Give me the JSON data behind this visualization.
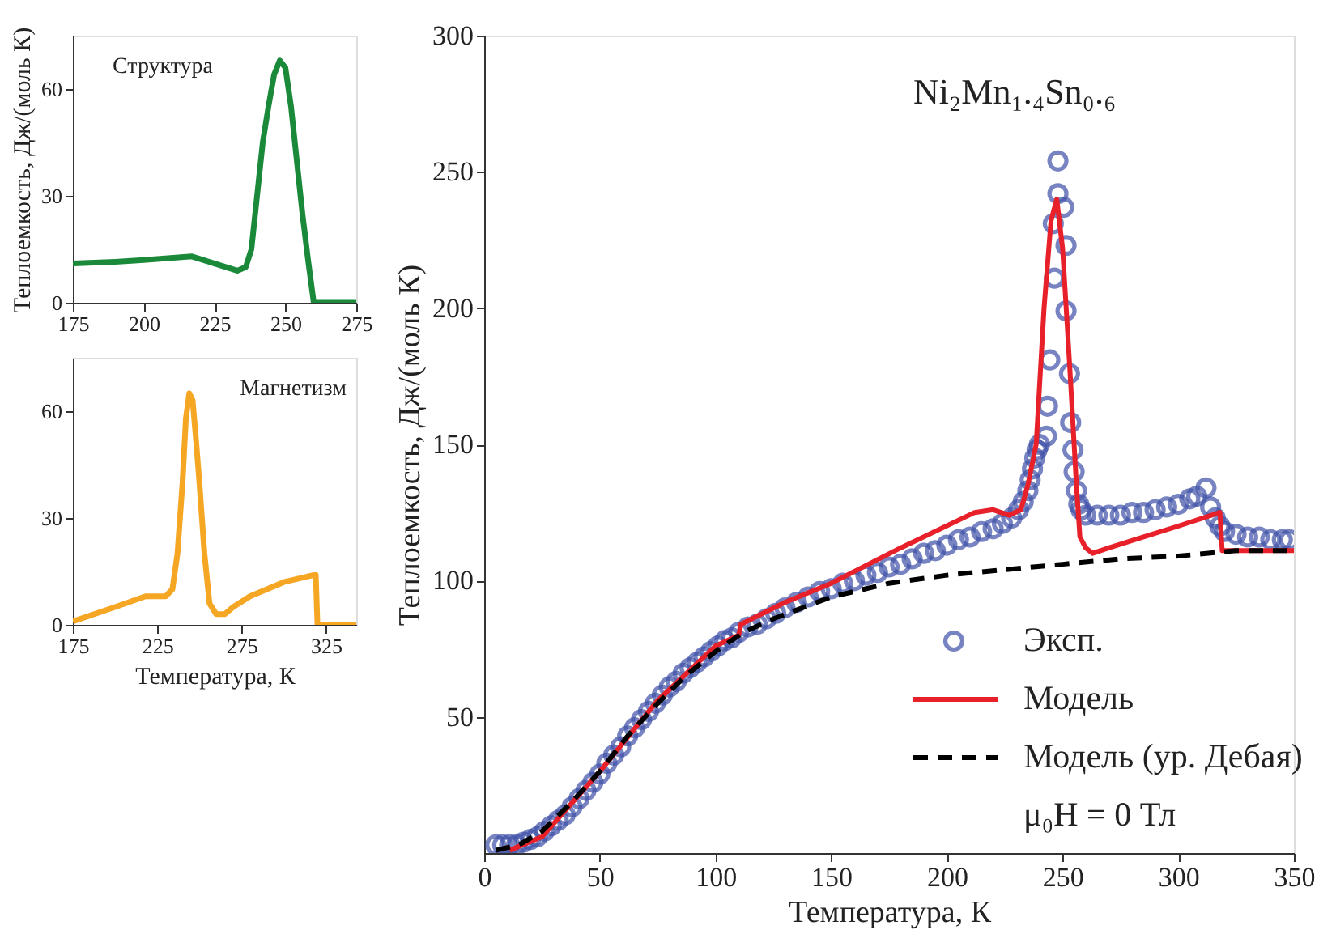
{
  "chart_data": [
    {
      "type": "line",
      "xlabel": "Температура, К",
      "ylabel": "Теплоемкость, Дж/(моль К)",
      "xlim": [
        0,
        350
      ],
      "ylim": [
        0,
        300
      ],
      "xticks": [
        0,
        50,
        100,
        150,
        200,
        250,
        300,
        350
      ],
      "yticks": [
        50,
        100,
        150,
        200,
        250,
        300
      ],
      "grid": false,
      "legend": "bottom right",
      "annotations": [
        "Ni₂Mn₁.₄Sn₀.₆",
        "μ₀H = 0 Тл"
      ],
      "series": [
        {
          "name": "Эксп.",
          "type": "scatter",
          "marker": "circle",
          "color": "#3f51a8",
          "x": [
            5,
            8,
            11,
            14,
            17,
            20,
            23,
            26,
            29,
            32,
            35,
            38,
            41,
            44,
            47,
            50,
            53,
            56,
            59,
            62,
            65,
            68,
            71,
            74,
            77,
            80,
            83,
            86,
            89,
            92,
            95,
            98,
            101,
            104,
            107,
            110,
            114,
            118,
            122,
            126,
            130,
            135,
            140,
            145,
            150,
            155,
            160,
            165,
            170,
            175,
            180,
            185,
            190,
            195,
            200,
            205,
            210,
            215,
            220,
            224,
            228,
            231,
            233,
            235,
            236,
            237,
            238,
            239,
            240,
            243,
            243.5,
            244.5,
            246,
            246.5,
            248,
            248,
            250.5,
            251.5,
            251.5,
            253,
            253.5,
            254.5,
            255,
            256,
            257,
            258,
            260,
            265,
            270,
            275,
            280,
            285,
            290,
            295,
            300,
            305,
            308,
            312,
            314,
            316,
            318,
            320,
            325,
            330,
            335,
            340,
            345,
            348
          ],
          "values": [
            3,
            3,
            3,
            3,
            4,
            5,
            6,
            8,
            10,
            12,
            14,
            17,
            20,
            23,
            26,
            29,
            33,
            36,
            39,
            43,
            46,
            49,
            52,
            55,
            58,
            61,
            63,
            66,
            68,
            70,
            72,
            74,
            76,
            78,
            79,
            81,
            83,
            84,
            86,
            88,
            90,
            92,
            94,
            96,
            97,
            99,
            100,
            102,
            103,
            105,
            106,
            108,
            110,
            111,
            113,
            115,
            116,
            118,
            119,
            121,
            123,
            126,
            129,
            133,
            137,
            141,
            145,
            148,
            150,
            153,
            164,
            181,
            231,
            211,
            254,
            242,
            237,
            223,
            199,
            176,
            158,
            148,
            140,
            133,
            128,
            126,
            124,
            124,
            124,
            124,
            125,
            125,
            126,
            127,
            128,
            130,
            131,
            134,
            127,
            123,
            120,
            118,
            117,
            116,
            116,
            115,
            115,
            115
          ]
        },
        {
          "name": "Модель",
          "type": "line",
          "line_style": "solid",
          "color": "#e8202a",
          "x": [
            11,
            25,
            50,
            75,
            100,
            110,
            111,
            130,
            150,
            180,
            212,
            220,
            227,
            232,
            235,
            238.6,
            242,
            245,
            247.5,
            250,
            253,
            256,
            257.5,
            260,
            263,
            270,
            285,
            300,
            318,
            319,
            350
          ],
          "values": [
            1,
            6,
            30,
            56,
            76,
            80,
            84,
            92,
            99,
            112,
            125,
            126,
            124,
            126,
            135,
            150,
            200,
            232,
            240,
            222,
            180,
            135,
            116,
            112,
            110,
            112,
            116,
            120,
            125,
            111,
            111
          ]
        },
        {
          "name": "Модель (ур. Дебая)",
          "type": "line",
          "line_style": "dashed",
          "color": "#000000",
          "x": [
            5,
            15,
            25,
            37,
            50,
            62,
            75,
            87,
            100,
            112,
            125,
            150,
            175,
            200,
            225,
            250,
            275,
            300,
            325,
            350
          ],
          "values": [
            1,
            3,
            8,
            18,
            30,
            43,
            55,
            65,
            74,
            81,
            86,
            94,
            99,
            102,
            104,
            106,
            108,
            109,
            111,
            111
          ]
        }
      ]
    },
    {
      "type": "line",
      "title": "Структура",
      "ylabel": "Теплоемкость, Дж/(моль К)",
      "xlim": [
        175,
        275
      ],
      "ylim": [
        0,
        75
      ],
      "xticks": [
        175,
        200,
        225,
        250,
        275
      ],
      "yticks": [
        0,
        30,
        60
      ],
      "grid": false,
      "series": [
        {
          "color": "#1a8a3a",
          "line_style": "solid",
          "x": [
            175,
            190,
            200,
            217,
            225,
            233,
            236,
            238,
            240,
            242,
            244,
            246,
            248,
            250,
            252,
            254,
            256,
            258,
            260,
            275
          ],
          "values": [
            11,
            11.5,
            12,
            13,
            11,
            9,
            10,
            15,
            30,
            45,
            55,
            64,
            68,
            66,
            55,
            40,
            25,
            12,
            0,
            0
          ]
        }
      ]
    },
    {
      "type": "line",
      "title": "Магнетизм",
      "xlabel": "Температура, К",
      "xlim": [
        175,
        343
      ],
      "ylim": [
        0,
        75
      ],
      "xticks": [
        175,
        225,
        275,
        325
      ],
      "yticks": [
        0,
        30,
        60
      ],
      "grid": false,
      "series": [
        {
          "color": "#f5a623",
          "line_style": "solid",
          "x": [
            175,
            200,
            218,
            230,
            234,
            237,
            240,
            242,
            244,
            246,
            248,
            250,
            253,
            256,
            260,
            265,
            270,
            280,
            300,
            318,
            319,
            320,
            343
          ],
          "values": [
            1,
            5,
            8,
            8,
            10,
            20,
            40,
            58,
            65,
            63,
            52,
            40,
            20,
            6,
            3,
            3,
            5,
            8,
            12,
            14,
            14,
            0,
            0
          ]
        }
      ]
    }
  ]
}
